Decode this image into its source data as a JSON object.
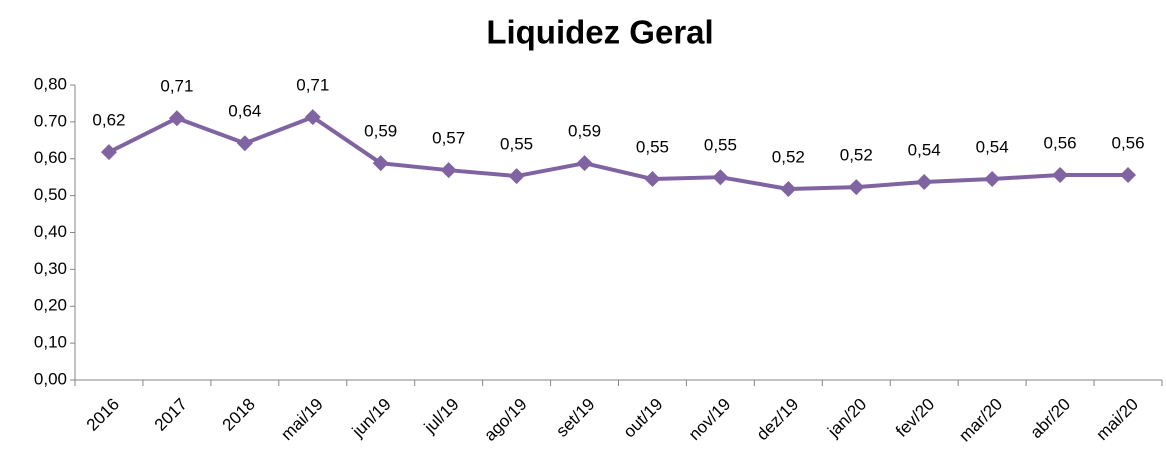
{
  "chart_data": {
    "type": "line",
    "title": "Liquidez Geral",
    "categories": [
      "2016",
      "2017",
      "2018",
      "mai/19",
      "jun/19",
      "jul/19",
      "ago/19",
      "set/19",
      "out/19",
      "nov/19",
      "dez/19",
      "jan/20",
      "fev/20",
      "mar/20",
      "abr/20",
      "mai/20"
    ],
    "series": [
      {
        "name": "Liquidez Geral",
        "color": "#8064a2",
        "values": [
          0.618,
          0.71,
          0.642,
          0.713,
          0.588,
          0.569,
          0.553,
          0.588,
          0.545,
          0.55,
          0.518,
          0.523,
          0.537,
          0.545,
          0.556,
          0.556
        ],
        "value_labels": [
          "0,62",
          "0,71",
          "0,64",
          "0,71",
          "0,59",
          "0,57",
          "0,55",
          "0,59",
          "0,55",
          "0,55",
          "0,52",
          "0,52",
          "0,54",
          "0,54",
          "0,56",
          "0,56"
        ]
      }
    ],
    "ylim": [
      0,
      0.8
    ],
    "yticks": [
      {
        "value": 0,
        "label": "0,00"
      },
      {
        "value": 0.1,
        "label": "0,10"
      },
      {
        "value": 0.2,
        "label": "0,20"
      },
      {
        "value": 0.3,
        "label": "0,30"
      },
      {
        "value": 0.4,
        "label": "0,40"
      },
      {
        "value": 0.5,
        "label": "0,50"
      },
      {
        "value": 0.6,
        "label": "0,60"
      },
      {
        "value": 0.7,
        "label": "0.70"
      },
      {
        "value": 0.8,
        "label": "0,80"
      }
    ],
    "grid": false
  }
}
